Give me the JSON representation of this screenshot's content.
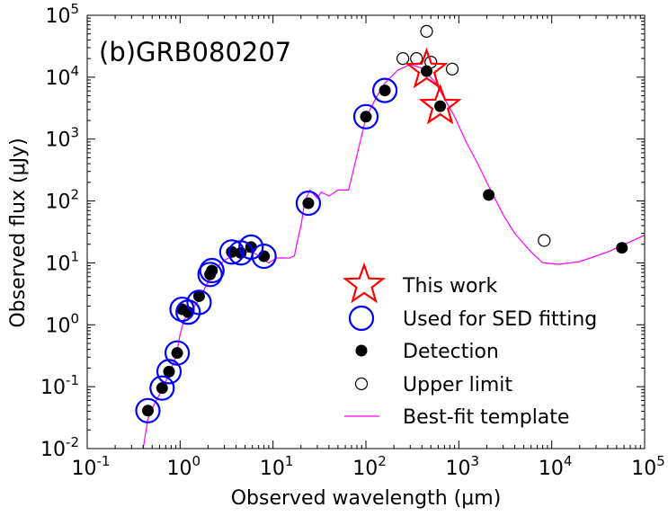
{
  "chart_data": {
    "type": "scatter",
    "panel_label": "(b)GRB080207",
    "xlabel": "Observed wavelength (μm)",
    "ylabel": "Observed flux (μJy)",
    "xscale": "log",
    "yscale": "log",
    "xlim": [
      0.1,
      100000
    ],
    "ylim": [
      0.01,
      100000
    ],
    "x_ticks": [
      {
        "base": "10",
        "exp": "-1"
      },
      {
        "base": "10",
        "exp": "0"
      },
      {
        "base": "10",
        "exp": "1"
      },
      {
        "base": "10",
        "exp": "2"
      },
      {
        "base": "10",
        "exp": "3"
      },
      {
        "base": "10",
        "exp": "4"
      },
      {
        "base": "10",
        "exp": "5"
      }
    ],
    "y_ticks": [
      {
        "base": "10",
        "exp": "-2"
      },
      {
        "base": "10",
        "exp": "-1"
      },
      {
        "base": "10",
        "exp": "0"
      },
      {
        "base": "10",
        "exp": "1"
      },
      {
        "base": "10",
        "exp": "2"
      },
      {
        "base": "10",
        "exp": "3"
      },
      {
        "base": "10",
        "exp": "4"
      },
      {
        "base": "10",
        "exp": "5"
      }
    ],
    "legend": {
      "placement": "lower-right",
      "entries": [
        {
          "label": "This work",
          "marker": "star",
          "color": "#ff0000"
        },
        {
          "label": "Used for SED fitting",
          "marker": "open-circle-large",
          "color": "#0000ff"
        },
        {
          "label": "Detection",
          "marker": "filled-circle",
          "color": "#000000"
        },
        {
          "label": "Upper limit",
          "marker": "open-circle",
          "color": "#000000"
        },
        {
          "label": "Best-fit template",
          "marker": "line",
          "color": "#ff00ff"
        }
      ]
    },
    "series": [
      {
        "name": "Detection",
        "color": "#000000",
        "points": [
          [
            0.45,
            0.041
          ],
          [
            0.64,
            0.095
          ],
          [
            0.76,
            0.175
          ],
          [
            0.93,
            0.35
          ],
          [
            1.05,
            1.78
          ],
          [
            1.22,
            1.6
          ],
          [
            1.6,
            2.9
          ],
          [
            2.1,
            6.5
          ],
          [
            2.2,
            7.5
          ],
          [
            3.6,
            15
          ],
          [
            4.5,
            14.5
          ],
          [
            5.8,
            18
          ],
          [
            8.0,
            12.8
          ],
          [
            24,
            92
          ],
          [
            100,
            2300
          ],
          [
            160,
            6100
          ],
          [
            450,
            12500
          ],
          [
            630,
            3400
          ],
          [
            2100,
            125
          ],
          [
            57000,
            17.5
          ]
        ]
      },
      {
        "name": "Used for SED fitting",
        "color": "#0000ff",
        "points": [
          [
            0.45,
            0.041
          ],
          [
            0.64,
            0.095
          ],
          [
            0.76,
            0.175
          ],
          [
            0.93,
            0.35
          ],
          [
            1.05,
            1.78
          ],
          [
            1.22,
            1.6
          ],
          [
            1.6,
            2.3
          ],
          [
            2.1,
            6.5
          ],
          [
            2.2,
            7.5
          ],
          [
            3.6,
            15
          ],
          [
            4.5,
            14.5
          ],
          [
            5.8,
            18
          ],
          [
            8.0,
            12.8
          ],
          [
            24,
            92
          ],
          [
            100,
            2300
          ],
          [
            160,
            6100
          ]
        ]
      },
      {
        "name": "This work",
        "color": "#ff0000",
        "points": [
          [
            450,
            13000
          ],
          [
            630,
            3400
          ]
        ]
      },
      {
        "name": "Upper limit",
        "color": "#000000",
        "points": [
          [
            250,
            20000
          ],
          [
            350,
            20000
          ],
          [
            450,
            55000
          ],
          [
            500,
            17500
          ],
          [
            850,
            13500
          ],
          [
            8300,
            23
          ]
        ]
      },
      {
        "name": "Best-fit template",
        "color": "#ff00ff",
        "line": [
          [
            0.4,
            0.01
          ],
          [
            0.45,
            0.03
          ],
          [
            0.52,
            0.05
          ],
          [
            0.64,
            0.09
          ],
          [
            0.76,
            0.16
          ],
          [
            0.9,
            0.3
          ],
          [
            1.0,
            0.7
          ],
          [
            1.1,
            1.2
          ],
          [
            1.3,
            1.7
          ],
          [
            1.6,
            2.5
          ],
          [
            2.0,
            5.0
          ],
          [
            2.5,
            8.5
          ],
          [
            3.0,
            11
          ],
          [
            4.0,
            14
          ],
          [
            5.0,
            15
          ],
          [
            6.0,
            15
          ],
          [
            7.0,
            13
          ],
          [
            8.0,
            11
          ],
          [
            9.0,
            10
          ],
          [
            11,
            12
          ],
          [
            13,
            12
          ],
          [
            15,
            12
          ],
          [
            17,
            13
          ],
          [
            18,
            20
          ],
          [
            20,
            40
          ],
          [
            22,
            100
          ],
          [
            25,
            150
          ],
          [
            30,
            110
          ],
          [
            33,
            140
          ],
          [
            40,
            120
          ],
          [
            50,
            150
          ],
          [
            65,
            150
          ],
          [
            80,
            550
          ],
          [
            100,
            2200
          ],
          [
            130,
            4800
          ],
          [
            160,
            8000
          ],
          [
            220,
            13000
          ],
          [
            300,
            16000
          ],
          [
            400,
            14000
          ],
          [
            550,
            8500
          ],
          [
            700,
            4500
          ],
          [
            900,
            2300
          ],
          [
            1200,
            900
          ],
          [
            1600,
            400
          ],
          [
            2000,
            200
          ],
          [
            3000,
            60
          ],
          [
            4000,
            30
          ],
          [
            6000,
            15
          ],
          [
            8000,
            10
          ],
          [
            12000,
            9.5
          ],
          [
            20000,
            10.5
          ],
          [
            40000,
            15
          ],
          [
            70000,
            22
          ],
          [
            100000,
            28
          ]
        ]
      }
    ]
  }
}
